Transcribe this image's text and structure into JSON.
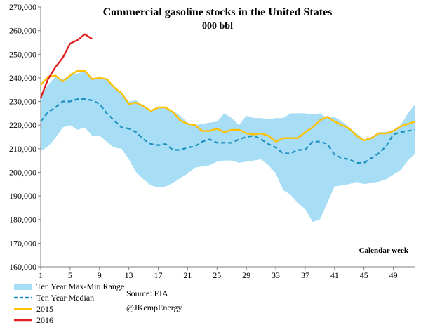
{
  "chart_data": {
    "type": "line",
    "title": "Commercial gasoline stocks in the United States",
    "subtitle": "000 bbl",
    "xlabel": "Calendar week",
    "ylabel": "",
    "xlim": [
      1,
      52
    ],
    "ylim": [
      160000,
      270000
    ],
    "x_ticks": [
      1,
      5,
      9,
      13,
      17,
      21,
      25,
      29,
      33,
      37,
      41,
      45,
      49
    ],
    "x_tick_labels": [
      "1",
      "5",
      "9",
      "13",
      "17",
      "21",
      "25",
      "29",
      "33",
      "37",
      "41",
      "45",
      "49"
    ],
    "y_ticks": [
      160000,
      170000,
      180000,
      190000,
      200000,
      210000,
      220000,
      230000,
      240000,
      250000,
      260000,
      270000
    ],
    "y_tick_labels": [
      "160,000",
      "170,000",
      "180,000",
      "190,000",
      "200,000",
      "210,000",
      "220,000",
      "230,000",
      "240,000",
      "250,000",
      "260,000",
      "270,000"
    ],
    "grid": false,
    "legend_position": "bottom-left",
    "weeks": [
      1,
      2,
      3,
      4,
      5,
      6,
      7,
      8,
      9,
      10,
      11,
      12,
      13,
      14,
      15,
      16,
      17,
      18,
      19,
      20,
      21,
      22,
      23,
      24,
      25,
      26,
      27,
      28,
      29,
      30,
      31,
      32,
      33,
      34,
      35,
      36,
      37,
      38,
      39,
      40,
      41,
      42,
      43,
      44,
      45,
      46,
      47,
      48,
      49,
      50,
      51,
      52
    ],
    "series": [
      {
        "name": "Ten Year Max-Min Range",
        "kind": "band",
        "color": "#a8def5",
        "upper": [
          232000,
          237000,
          240500,
          239500,
          241000,
          242000,
          242500,
          240000,
          239500,
          239500,
          236000,
          234000,
          230000,
          230500,
          228000,
          226500,
          227500,
          227500,
          226000,
          224000,
          221000,
          220000,
          220500,
          221000,
          221500,
          225000,
          223000,
          220000,
          224000,
          223000,
          223000,
          222500,
          223000,
          223000,
          225000,
          225000,
          225000,
          224500,
          225000,
          223000,
          223500,
          221500,
          219000,
          216500,
          214000,
          215000,
          217000,
          217000,
          218000,
          220000,
          225000,
          229000
        ],
        "lower": [
          209000,
          211000,
          214500,
          219000,
          220000,
          218000,
          219000,
          215500,
          215500,
          213000,
          210500,
          210000,
          205500,
          200000,
          197000,
          194500,
          193500,
          194000,
          195500,
          197500,
          199500,
          202000,
          202500,
          203000,
          204500,
          205000,
          205000,
          204000,
          204500,
          205000,
          205500,
          203000,
          199500,
          192500,
          190500,
          187000,
          184500,
          179000,
          180000,
          187000,
          194000,
          194500,
          195000,
          196000,
          195000,
          195500,
          196000,
          197000,
          199000,
          201000,
          205000,
          208000
        ]
      },
      {
        "name": "Ten Year Median",
        "kind": "line",
        "dashed": true,
        "color": "#1a8fc0",
        "values": [
          221500,
          225500,
          227500,
          230000,
          230000,
          231000,
          231000,
          230500,
          229000,
          225000,
          222000,
          219000,
          218500,
          217000,
          214000,
          212000,
          211500,
          212000,
          209500,
          209500,
          210500,
          211000,
          213000,
          214000,
          212500,
          212500,
          212500,
          214000,
          215000,
          215500,
          214000,
          212000,
          210500,
          208000,
          208000,
          209500,
          209500,
          213000,
          213000,
          212000,
          207500,
          206000,
          205500,
          204000,
          204000,
          206000,
          208000,
          211000,
          216000,
          217000,
          217500,
          218000
        ]
      },
      {
        "name": "2015",
        "kind": "line",
        "color": "#ffc000",
        "values": [
          237000,
          240500,
          241000,
          238500,
          241000,
          243000,
          243000,
          239500,
          240000,
          239500,
          236000,
          233500,
          229000,
          229500,
          228000,
          226000,
          227500,
          227500,
          225500,
          222000,
          220500,
          220000,
          217500,
          217500,
          218500,
          217000,
          218000,
          218000,
          216500,
          216000,
          216500,
          215500,
          213000,
          214500,
          214500,
          214500,
          217000,
          219000,
          222000,
          223500,
          221500,
          220000,
          218500,
          215500,
          213500,
          214500,
          216500,
          216500,
          217500,
          219500,
          220500,
          221500
        ]
      },
      {
        "name": "2016",
        "kind": "line",
        "color": "#e02020",
        "values": [
          231500,
          239500,
          244500,
          248500,
          254500,
          256000,
          258500,
          256500
        ]
      }
    ],
    "annotations": [
      "Source: EIA",
      "@JKempEnergy"
    ]
  }
}
